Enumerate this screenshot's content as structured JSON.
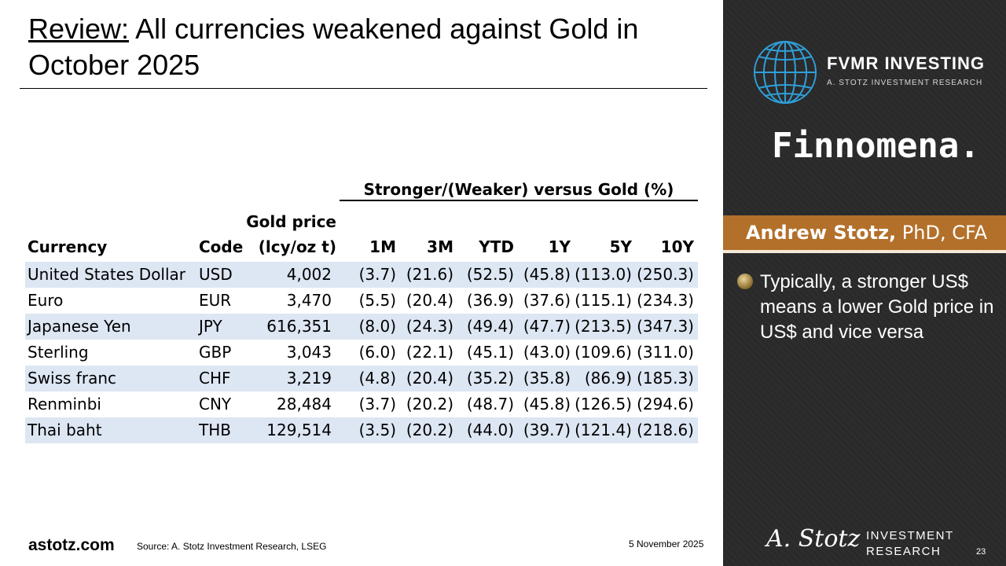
{
  "title": {
    "lead": "Review:",
    "rest": " All currencies weakened against Gold in October 2025"
  },
  "table": {
    "group_header": "Stronger/(Weaker) versus Gold (%)",
    "headers": {
      "currency": "Currency",
      "code": "Code",
      "price_line1": "Gold price",
      "price_line2": "(lcy/oz t)",
      "m1": "1M",
      "m3": "3M",
      "ytd": "YTD",
      "y1": "1Y",
      "y5": "5Y",
      "y10": "10Y"
    },
    "rows": [
      {
        "name": "United States Dollar",
        "code": "USD",
        "price": "4,002",
        "m1": "(3.7)",
        "m3": "(21.6)",
        "ytd": "(52.5)",
        "y1": "(45.8)",
        "y5": "(113.0)",
        "y10": "(250.3)"
      },
      {
        "name": "Euro",
        "code": "EUR",
        "price": "3,470",
        "m1": "(5.5)",
        "m3": "(20.4)",
        "ytd": "(36.9)",
        "y1": "(37.6)",
        "y5": "(115.1)",
        "y10": "(234.3)"
      },
      {
        "name": "Japanese Yen",
        "code": "JPY",
        "price": "616,351",
        "m1": "(8.0)",
        "m3": "(24.3)",
        "ytd": "(49.4)",
        "y1": "(47.7)",
        "y5": "(213.5)",
        "y10": "(347.3)"
      },
      {
        "name": "Sterling",
        "code": "GBP",
        "price": "3,043",
        "m1": "(6.0)",
        "m3": "(22.1)",
        "ytd": "(45.1)",
        "y1": "(43.0)",
        "y5": "(109.6)",
        "y10": "(311.0)"
      },
      {
        "name": "Swiss franc",
        "code": "CHF",
        "price": "3,219",
        "m1": "(4.8)",
        "m3": "(20.4)",
        "ytd": "(35.2)",
        "y1": "(35.8)",
        "y5": "(86.9)",
        "y10": "(185.3)"
      },
      {
        "name": "Renminbi",
        "code": "CNY",
        "price": "28,484",
        "m1": "(3.7)",
        "m3": "(20.2)",
        "ytd": "(48.7)",
        "y1": "(45.8)",
        "y5": "(126.5)",
        "y10": "(294.6)"
      },
      {
        "name": "Thai baht",
        "code": "THB",
        "price": "129,514",
        "m1": "(3.5)",
        "m3": "(20.2)",
        "ytd": "(44.0)",
        "y1": "(39.7)",
        "y5": "(121.4)",
        "y10": "(218.6)"
      }
    ]
  },
  "footer": {
    "site": "astotz.com",
    "source": "Source: A. Stotz Investment Research, LSEG",
    "date": "5 November 2025"
  },
  "panel": {
    "brand": "FVMR INVESTING",
    "brand_sub": "A. STOTZ INVESTMENT RESEARCH",
    "partner": "Finnomena.",
    "presenter_name": "Andrew Stotz,",
    "presenter_creds": " PhD, CFA",
    "bullet": "Typically, a stronger US$ means a lower Gold price in US$ and vice versa",
    "signature": "A. Stotz",
    "logo_line1": "INVESTMENT",
    "logo_line2": "RESEARCH",
    "page_number": "23"
  },
  "colors": {
    "panel_bg": "#2a2a2a",
    "name_bar": "#b3702a",
    "row_shade": "#dde6f3",
    "globe": "#2f9fd9"
  }
}
